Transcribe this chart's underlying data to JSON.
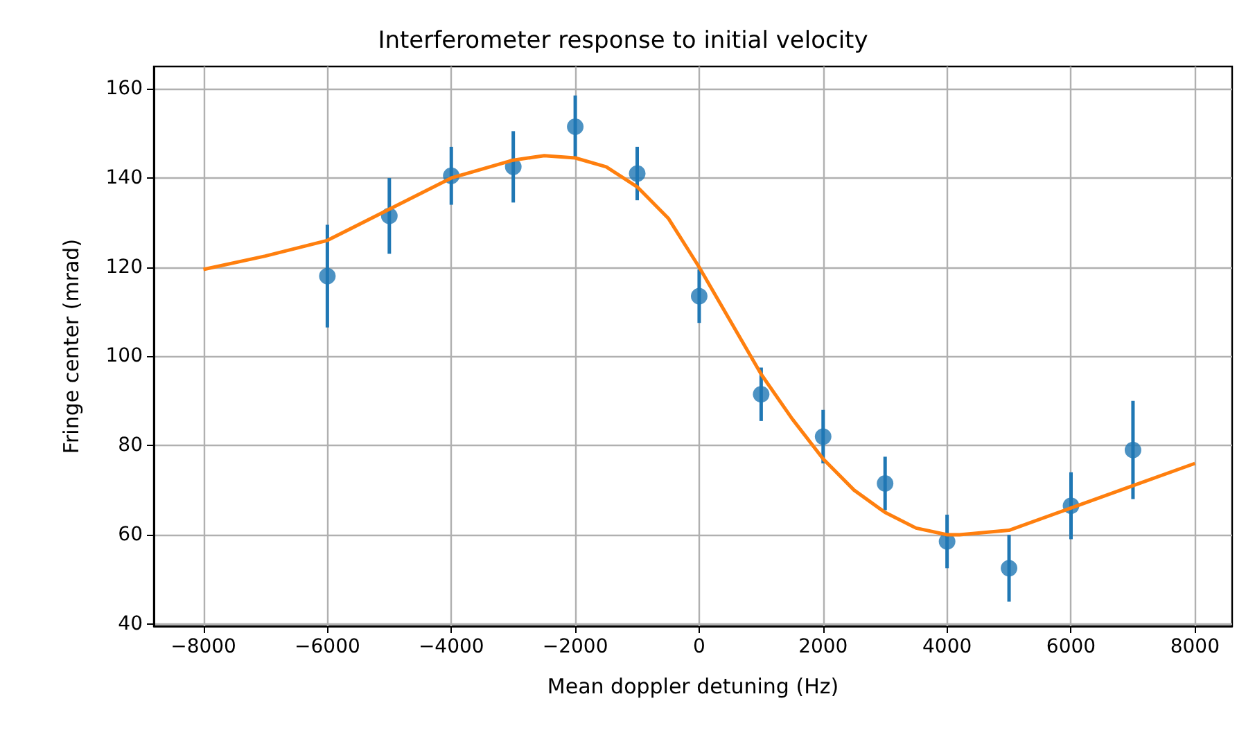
{
  "chart_data": {
    "type": "scatter",
    "title": "Interferometer response to initial velocity",
    "xlabel": "Mean doppler detuning (Hz)",
    "ylabel": "Fringe center (mrad)",
    "xlim": [
      -8800,
      8600
    ],
    "xticks": [
      -8000,
      -6000,
      -4000,
      -2000,
      0,
      2000,
      4000,
      6000,
      8000
    ],
    "ylim": [
      39.5,
      165
    ],
    "yticks": [
      40,
      60,
      80,
      100,
      120,
      140,
      160
    ],
    "grid": true,
    "series": [
      {
        "color": "#1f77b4",
        "marker": "circle",
        "x": [
          -6000,
          -5000,
          -4000,
          -3000,
          -2000,
          -1000,
          0,
          1000,
          2000,
          3000,
          4000,
          5000,
          6000,
          7000
        ],
        "values": [
          118,
          131.5,
          140.5,
          142.5,
          151.5,
          141,
          113.5,
          91.5,
          82,
          71.5,
          58.5,
          52.5,
          66.5,
          79
        ],
        "errors": [
          11.5,
          8.5,
          6.5,
          8,
          7,
          6,
          6,
          6,
          6,
          6,
          6,
          7.5,
          7.5,
          11
        ]
      },
      {
        "type": "line",
        "color": "#ff7f0e",
        "marker": "none",
        "line_style": "solid",
        "x": [
          -8000,
          -7000,
          -6000,
          -5000,
          -4000,
          -3000,
          -2500,
          -2000,
          -1500,
          -1000,
          -500,
          0,
          500,
          1000,
          1500,
          2000,
          2500,
          3000,
          3500,
          4000,
          4200,
          5000,
          6000,
          7000,
          8000
        ],
        "values": [
          119.5,
          122.5,
          126,
          133,
          140,
          144,
          145,
          144.5,
          142.5,
          138,
          131,
          120,
          108,
          96,
          86,
          77,
          70,
          65,
          61.5,
          60,
          60,
          61,
          66,
          71,
          76
        ]
      }
    ]
  }
}
